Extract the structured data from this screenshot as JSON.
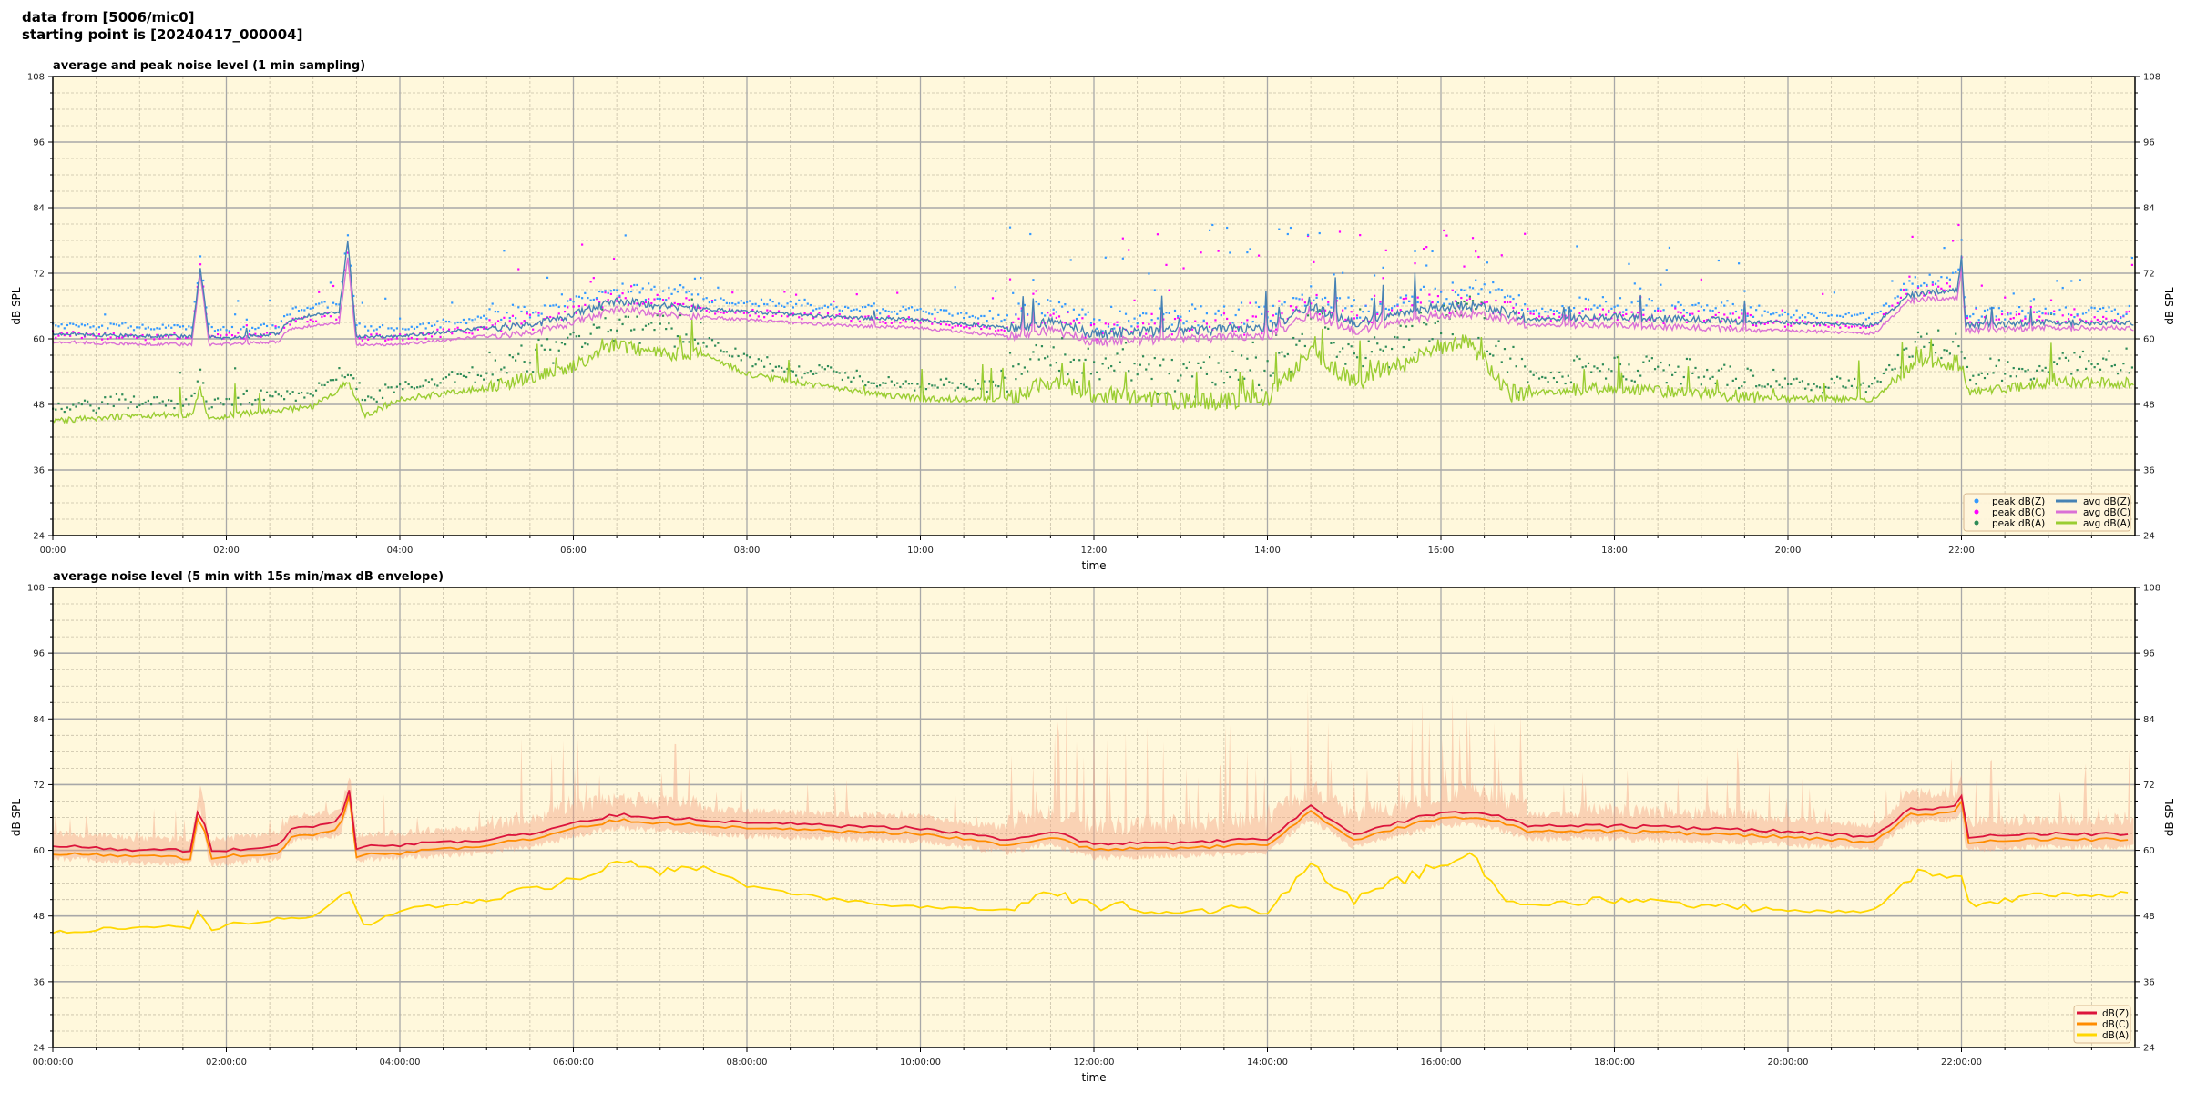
{
  "figure": {
    "title_line1": "data from [5006/mic0]",
    "title_line2": "starting point is [20240417_000004]"
  },
  "colors": {
    "background": "#fff8dc",
    "peak_z": "#3399ff",
    "peak_c": "#ff00ff",
    "peak_a": "#2e8b57",
    "avg_z": "#4682b4",
    "avg_c": "#da70d6",
    "avg_a": "#9acd32",
    "db_z": "#dc143c",
    "db_c": "#ff8c00",
    "db_a": "#ffd700",
    "envelope": "#f4a582"
  },
  "chart_data": [
    {
      "type": "line",
      "title": "average and peak noise level (1 min sampling)",
      "xlabel": "time",
      "ylabel": "dB SPL",
      "ylabel_right": "dB SPL",
      "xlim": [
        0,
        24
      ],
      "ylim": [
        24,
        108
      ],
      "x_tick_labels": [
        "00:00",
        "02:00",
        "04:00",
        "06:00",
        "08:00",
        "10:00",
        "12:00",
        "14:00",
        "16:00",
        "18:00",
        "20:00",
        "22:00"
      ],
      "y_tick_labels": [
        "24",
        "36",
        "48",
        "60",
        "72",
        "84",
        "96",
        "108"
      ],
      "grid": true,
      "legend_position": "lower-right",
      "legend": [
        "peak dB(Z)",
        "peak dB(C)",
        "peak dB(A)",
        "avg dB(Z)",
        "avg dB(C)",
        "avg dB(A)"
      ],
      "x_unit": "hours",
      "series": [
        {
          "name": "avg dB(Z)",
          "x": [
            0,
            1,
            1.6,
            1.7,
            1.8,
            2,
            2.6,
            2.7,
            3,
            3.3,
            3.4,
            3.5,
            4,
            5,
            5.5,
            6,
            6.5,
            7,
            8,
            9,
            10,
            11,
            11.5,
            12,
            13,
            14,
            14.5,
            15,
            16,
            16.5,
            17,
            18,
            19,
            20,
            21,
            21.4,
            21.95,
            22,
            22.05,
            23,
            24
          ],
          "y": [
            61,
            60.5,
            60.5,
            73,
            60.5,
            60,
            61,
            63,
            64.5,
            65,
            78,
            60.5,
            60.5,
            62,
            62.5,
            64.5,
            67,
            66,
            65,
            64,
            63.5,
            62,
            63,
            61,
            61.5,
            62,
            66,
            63,
            66,
            66,
            63.5,
            64,
            63.5,
            63,
            62.5,
            68,
            69,
            75,
            62.5,
            63,
            63
          ]
        },
        {
          "name": "avg dB(C)",
          "x": [
            0,
            1,
            1.6,
            1.7,
            1.8,
            2,
            2.6,
            2.7,
            3,
            3.3,
            3.4,
            3.5,
            4,
            5,
            5.5,
            6,
            6.5,
            7,
            8,
            9,
            10,
            11,
            11.5,
            12,
            13,
            14,
            14.5,
            15,
            16,
            16.5,
            17,
            18,
            19,
            20,
            21,
            21.4,
            21.95,
            22,
            22.05,
            23,
            24
          ],
          "y": [
            59.5,
            59,
            59,
            72,
            59,
            59,
            59.5,
            61.5,
            62.5,
            63,
            75,
            59,
            59,
            60.5,
            61,
            63,
            65.5,
            64.5,
            63.5,
            62.5,
            62,
            60.5,
            61.5,
            59.5,
            60,
            60.5,
            64.5,
            61.5,
            64.5,
            64.5,
            62.5,
            62.5,
            62,
            61.5,
            61,
            67,
            67.5,
            73,
            61.5,
            62,
            62
          ]
        },
        {
          "name": "avg dB(A)",
          "x": [
            0,
            1,
            1.6,
            1.7,
            1.8,
            2,
            3,
            3.4,
            3.6,
            4,
            5,
            6,
            6.5,
            7,
            7.5,
            8,
            9,
            10,
            11,
            11.5,
            12,
            13,
            14,
            14.5,
            15,
            16,
            16.3,
            16.8,
            17,
            18,
            19,
            20,
            21,
            21.5,
            22,
            22.1,
            23,
            24
          ],
          "y": [
            45,
            46,
            46,
            51,
            45,
            46,
            47.5,
            52,
            46,
            49,
            51,
            55,
            59,
            57,
            57.5,
            53.5,
            51,
            49,
            49,
            52,
            50,
            48.5,
            49,
            58,
            52,
            58,
            60,
            50,
            50,
            51,
            50,
            49,
            49,
            56,
            55,
            50,
            52,
            52
          ]
        }
      ]
    },
    {
      "type": "line",
      "title": "average noise level (5 min with 15s min/max dB envelope)",
      "xlabel": "time",
      "ylabel": "dB SPL",
      "ylabel_right": "dB SPL",
      "xlim": [
        0,
        24
      ],
      "ylim": [
        24,
        108
      ],
      "x_tick_labels": [
        "00:00:00",
        "02:00:00",
        "04:00:00",
        "06:00:00",
        "08:00:00",
        "10:00:00",
        "12:00:00",
        "14:00:00",
        "16:00:00",
        "18:00:00",
        "20:00:00",
        "22:00:00"
      ],
      "y_tick_labels": [
        "24",
        "36",
        "48",
        "60",
        "72",
        "84",
        "96",
        "108"
      ],
      "grid": true,
      "legend_position": "lower-right",
      "legend": [
        "dB(Z)",
        "dB(C)",
        "dB(A)"
      ],
      "x_unit": "hours",
      "series": [
        {
          "name": "dB(Z)",
          "x": [
            0,
            1,
            1.6,
            1.7,
            1.8,
            2,
            2.6,
            2.75,
            3,
            3.3,
            3.42,
            3.5,
            4,
            5,
            5.5,
            6,
            6.5,
            7,
            8,
            9,
            10,
            11,
            11.5,
            12,
            13,
            14,
            14.5,
            15,
            16,
            16.5,
            17,
            18,
            19,
            20,
            21,
            21.4,
            21.95,
            22,
            22.05,
            23,
            24
          ],
          "y": [
            61,
            60,
            60,
            70,
            60,
            60,
            61,
            64,
            64.5,
            65,
            71,
            60.5,
            61,
            62,
            63,
            65,
            66.5,
            66,
            65,
            64.5,
            64,
            62,
            63.5,
            61,
            61.5,
            62,
            68,
            63,
            67,
            67,
            64.5,
            64.5,
            64,
            63.5,
            62.5,
            67.5,
            68,
            70,
            62.5,
            63,
            63
          ]
        },
        {
          "name": "dB(C)",
          "x": [
            0,
            1,
            1.6,
            1.7,
            1.8,
            2,
            2.6,
            2.75,
            3,
            3.3,
            3.42,
            3.5,
            4,
            5,
            5.5,
            6,
            6.5,
            7,
            8,
            9,
            10,
            11,
            11.5,
            12,
            13,
            14,
            14.5,
            15,
            16,
            16.5,
            17,
            18,
            19,
            20,
            21,
            21.4,
            21.95,
            22,
            22.05,
            23,
            24
          ],
          "y": [
            59.5,
            59,
            58.5,
            69,
            58.5,
            59,
            59.5,
            62.5,
            63,
            63.5,
            70,
            59,
            59.5,
            61,
            62,
            64,
            65.5,
            65,
            64,
            63.5,
            63,
            61,
            62.5,
            60,
            60.5,
            61,
            67,
            62,
            66,
            66,
            63.5,
            63.5,
            63,
            62.5,
            61.5,
            66.5,
            67,
            69,
            61.5,
            62,
            62
          ]
        },
        {
          "name": "dB(A)",
          "x": [
            0,
            1,
            1.6,
            1.7,
            1.8,
            2,
            3,
            3.4,
            3.6,
            4,
            5,
            6,
            6.5,
            7,
            7.5,
            8,
            9,
            10,
            11,
            11.5,
            12,
            13,
            14,
            14.5,
            15,
            16,
            16.3,
            16.8,
            17,
            18,
            19,
            20,
            21,
            21.5,
            22,
            22.1,
            23,
            24
          ],
          "y": [
            45,
            46,
            46,
            50,
            45,
            46.5,
            48,
            53,
            46,
            49,
            51,
            54.5,
            58,
            56,
            57,
            53.5,
            51,
            49.5,
            49,
            52,
            50,
            49,
            49,
            57,
            51,
            57.5,
            60,
            50,
            50,
            51,
            50,
            49,
            49,
            56,
            55,
            50,
            52,
            52
          ]
        }
      ]
    }
  ]
}
